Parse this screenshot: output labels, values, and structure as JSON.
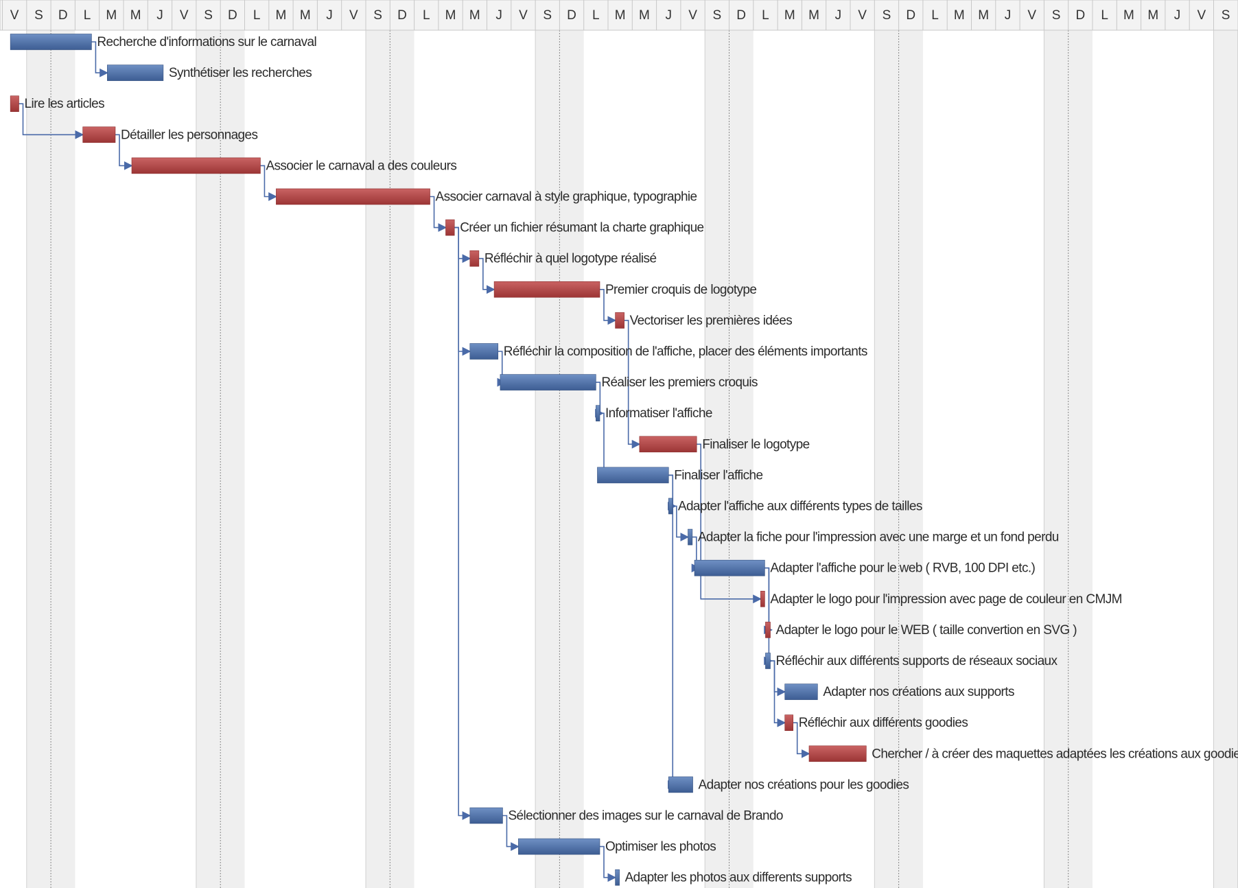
{
  "chart_data": {
    "type": "gantt",
    "title": "",
    "x_unit": "day",
    "header_days": [
      "V",
      "S",
      "D",
      "L",
      "M",
      "M",
      "J",
      "V",
      "S",
      "D",
      "L",
      "M",
      "M",
      "J",
      "V",
      "S",
      "D",
      "L",
      "M",
      "M",
      "J",
      "V",
      "S",
      "D",
      "L",
      "M",
      "M",
      "J",
      "V",
      "S",
      "D",
      "L",
      "M",
      "M",
      "J",
      "V",
      "S",
      "D",
      "L",
      "M",
      "M",
      "J",
      "V",
      "S",
      "D",
      "L",
      "M",
      "M",
      "J",
      "V",
      "S"
    ],
    "weekend_days": [
      "S",
      "D"
    ],
    "colors": {
      "blue": "#4d6fa6",
      "red": "#b54848",
      "link": "#4a6aa8",
      "weekend": "#efefef",
      "header_bg": "#f3f3f3"
    },
    "tasks": [
      {
        "name": "Recherche d'informations sur le carnaval",
        "start": 0.33,
        "end": 3.68,
        "color": "blue"
      },
      {
        "name": "Synthétiser les recherches",
        "start": 4.33,
        "end": 6.64,
        "color": "blue"
      },
      {
        "name": "Lire les articles",
        "start": 0.33,
        "end": 0.68,
        "color": "red"
      },
      {
        "name": "Détailler les personnages",
        "start": 3.32,
        "end": 4.66,
        "color": "red"
      },
      {
        "name": "Associer le carnaval a des couleurs",
        "start": 5.34,
        "end": 10.65,
        "color": "red"
      },
      {
        "name": "Associer carnaval à style graphique, typographie",
        "start": 11.3,
        "end": 17.65,
        "color": "red"
      },
      {
        "name": "Créer un fichier résumant la charte graphique",
        "start": 18.3,
        "end": 18.66,
        "color": "red"
      },
      {
        "name": "Réfléchir à quel logotype réalisé",
        "start": 19.3,
        "end": 19.67,
        "color": "red"
      },
      {
        "name": "Premier croquis de logotype",
        "start": 20.3,
        "end": 24.66,
        "color": "red"
      },
      {
        "name": "Vectoriser les premières idées",
        "start": 25.3,
        "end": 25.67,
        "color": "red"
      },
      {
        "name": "Réfléchir la composition de l'affiche, placer des éléments importants",
        "start": 19.3,
        "end": 20.46,
        "color": "blue"
      },
      {
        "name": "Réaliser les premiers croquis",
        "start": 20.55,
        "end": 24.5,
        "color": "blue"
      },
      {
        "name": "Informatiser l'affiche",
        "start": 24.5,
        "end": 24.66,
        "color": "blue"
      },
      {
        "name": "Finaliser le logotype",
        "start": 26.3,
        "end": 28.66,
        "color": "red"
      },
      {
        "name": "Finaliser l'affiche",
        "start": 24.56,
        "end": 27.5,
        "color": "blue"
      },
      {
        "name": "Adapter l'affiche aux différents types de tailles",
        "start": 27.5,
        "end": 27.66,
        "color": "blue"
      },
      {
        "name": "Adapter la fiche pour l'impression avec une marge et un fond perdu",
        "start": 28.3,
        "end": 28.48,
        "color": "blue"
      },
      {
        "name": "Adapter l'affiche pour le web ( RVB, 100 DPI etc.)",
        "start": 28.57,
        "end": 31.47,
        "color": "blue"
      },
      {
        "name": "Adapter le logo pour l'impression avec page de couleur en CMJM",
        "start": 31.3,
        "end": 31.47,
        "color": "red"
      },
      {
        "name": "Adapter le logo pour le WEB ( taille convertion en SVG )",
        "start": 31.5,
        "end": 31.7,
        "color": "red"
      },
      {
        "name": "Réfléchir aux différents supports de réseaux sociaux",
        "start": 31.5,
        "end": 31.7,
        "color": "blue"
      },
      {
        "name": "Adapter nos créations aux supports",
        "start": 32.3,
        "end": 33.65,
        "color": "blue"
      },
      {
        "name": "Réfléchir aux différents goodies",
        "start": 32.3,
        "end": 32.64,
        "color": "red"
      },
      {
        "name": "Chercher / à créer des maquettes adaptées les créations aux goodies",
        "start": 33.3,
        "end": 35.66,
        "color": "red"
      },
      {
        "name": "Adapter nos créations pour les goodies",
        "start": 27.5,
        "end": 28.5,
        "color": "blue"
      },
      {
        "name": "Sélectionner des images sur le carnaval de Brando",
        "start": 19.3,
        "end": 20.65,
        "color": "blue"
      },
      {
        "name": "Optimiser les photos",
        "start": 21.3,
        "end": 24.66,
        "color": "blue"
      },
      {
        "name": "Adapter les photos aux differents supports",
        "start": 25.3,
        "end": 25.47,
        "color": "blue"
      }
    ],
    "dependencies": [
      [
        0,
        1
      ],
      [
        2,
        3
      ],
      [
        3,
        4
      ],
      [
        4,
        5
      ],
      [
        5,
        6
      ],
      [
        6,
        7
      ],
      [
        7,
        8
      ],
      [
        8,
        9
      ],
      [
        6,
        10
      ],
      [
        10,
        11
      ],
      [
        11,
        12
      ],
      [
        9,
        13
      ],
      [
        12,
        14
      ],
      [
        14,
        15
      ],
      [
        15,
        16
      ],
      [
        16,
        17
      ],
      [
        13,
        18
      ],
      [
        17,
        19
      ],
      [
        17,
        20
      ],
      [
        20,
        21
      ],
      [
        20,
        22
      ],
      [
        22,
        23
      ],
      [
        14,
        24
      ],
      [
        6,
        25
      ],
      [
        25,
        26
      ],
      [
        26,
        27
      ]
    ]
  }
}
